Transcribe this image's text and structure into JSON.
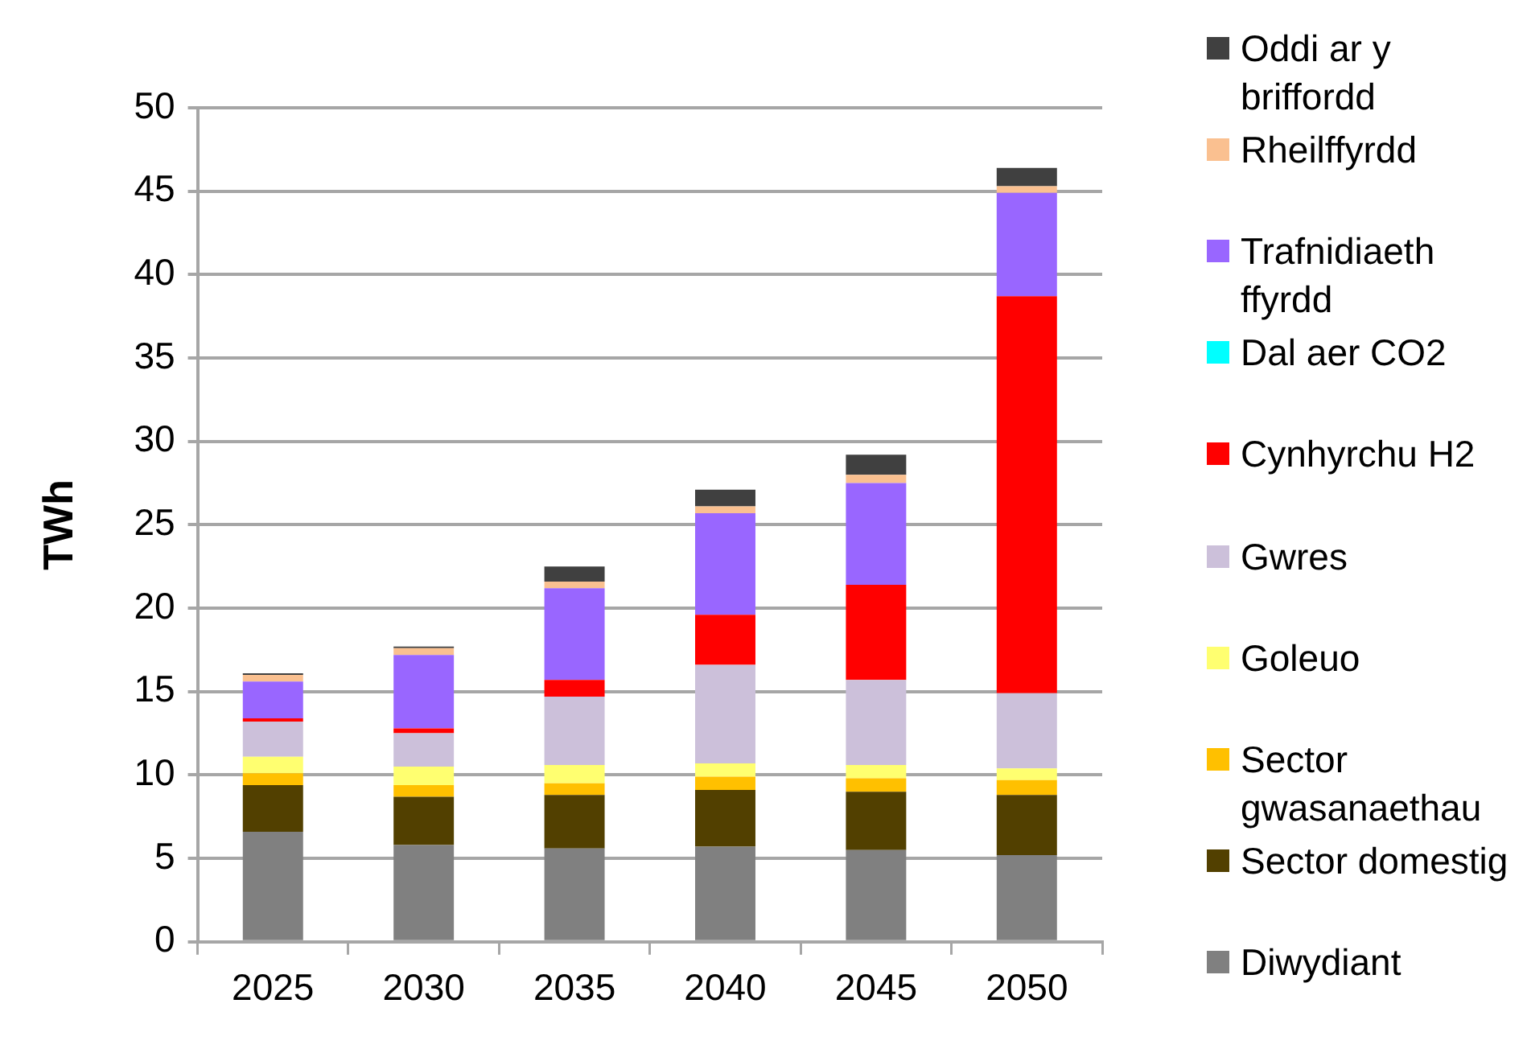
{
  "chart_data": {
    "type": "bar",
    "stacked": true,
    "ylabel": "TWh",
    "categories": [
      "2025",
      "2030",
      "2035",
      "2040",
      "2045",
      "2050"
    ],
    "ylim": [
      0,
      50
    ],
    "yticks": [
      0,
      5,
      10,
      15,
      20,
      25,
      30,
      35,
      40,
      45,
      50
    ],
    "grid": "y",
    "legend": "right",
    "series": [
      {
        "name": "Diwydiant",
        "color": "#808080",
        "values": [
          6.6,
          5.8,
          5.6,
          5.7,
          5.5,
          5.2
        ]
      },
      {
        "name": "Sector domestig",
        "color": "#524000",
        "values": [
          2.8,
          2.9,
          3.2,
          3.4,
          3.5,
          3.6
        ]
      },
      {
        "name": "Sector gwasanaethau",
        "color": "#ffc000",
        "values": [
          0.7,
          0.7,
          0.7,
          0.8,
          0.8,
          0.9
        ]
      },
      {
        "name": "Goleuo",
        "color": "#ffff70",
        "values": [
          1.0,
          1.1,
          1.1,
          0.8,
          0.8,
          0.7
        ]
      },
      {
        "name": "Gwres",
        "color": "#ccc0da",
        "values": [
          2.1,
          2.0,
          4.1,
          5.9,
          5.1,
          4.5
        ]
      },
      {
        "name": "Cynhyrchu H2",
        "color": "#ff0000",
        "values": [
          0.2,
          0.3,
          1.0,
          3.0,
          5.7,
          23.8
        ]
      },
      {
        "name": "Dal aer CO2",
        "color": "#00ffff",
        "values": [
          0,
          0,
          0,
          0,
          0,
          0
        ]
      },
      {
        "name": "Trafnidiaeth ffyrdd",
        "color": "#9966ff",
        "values": [
          2.2,
          4.4,
          5.5,
          6.1,
          6.1,
          6.2
        ]
      },
      {
        "name": "Rheilffyrdd",
        "color": "#fac090",
        "values": [
          0.4,
          0.4,
          0.4,
          0.4,
          0.5,
          0.4
        ]
      },
      {
        "name": "Oddi ar y briffordd",
        "color": "#404040",
        "values": [
          0.1,
          0.1,
          0.9,
          1.0,
          1.2,
          1.1
        ]
      }
    ]
  }
}
